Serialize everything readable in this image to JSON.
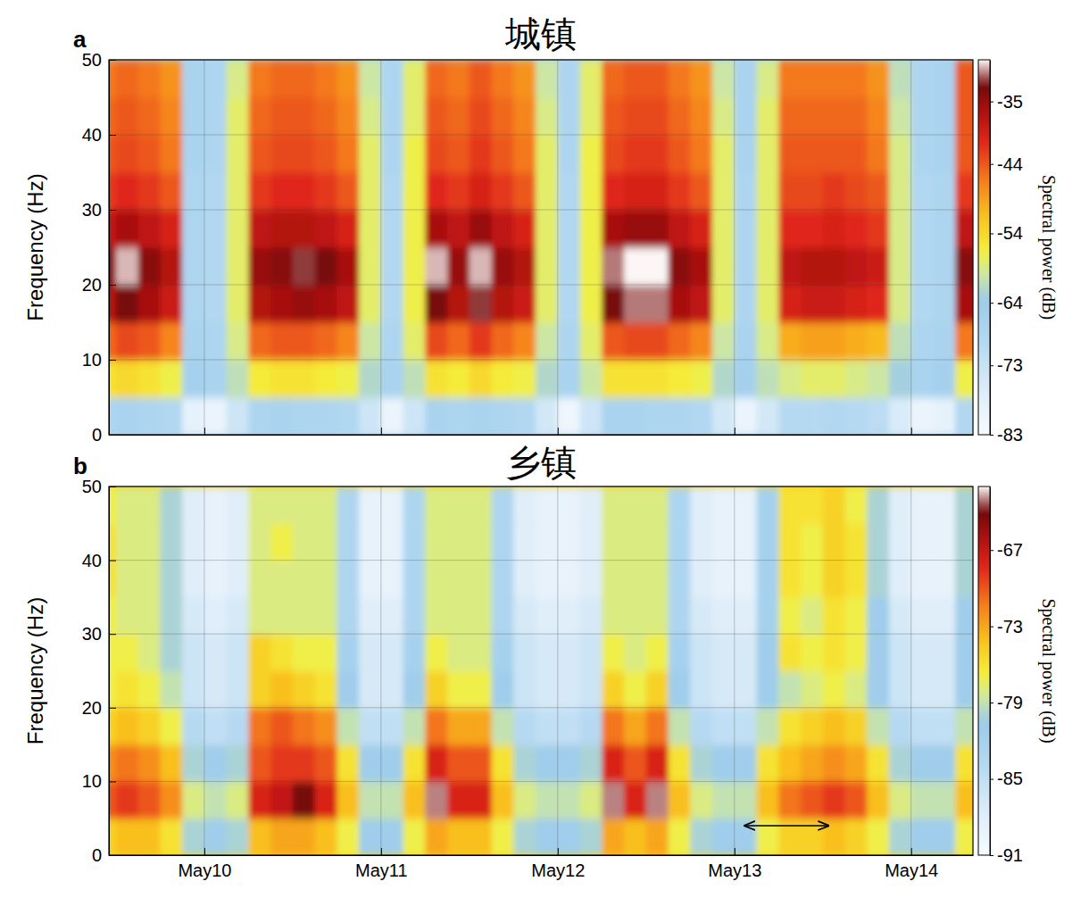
{
  "chart_data": [
    {
      "type": "heatmap",
      "title": "城镇",
      "panel": "a",
      "y_label": "Frequency (Hz)",
      "xlim": [
        9.46,
        14.35
      ],
      "ylim": [
        0,
        50
      ],
      "xticks": [
        {
          "value": 10,
          "label": "May10"
        },
        {
          "value": 11,
          "label": "May11"
        },
        {
          "value": 12,
          "label": "May12"
        },
        {
          "value": 13,
          "label": "May13"
        },
        {
          "value": 14,
          "label": "May14"
        }
      ],
      "yticks": [
        0,
        10,
        20,
        30,
        40,
        50
      ],
      "grid": true,
      "tick_labels": "y",
      "x_edges": [
        9.375,
        9.5,
        9.625,
        9.75,
        9.875,
        10,
        10.125,
        10.25,
        10.375,
        10.5,
        10.625,
        10.75,
        10.875,
        11,
        11.125,
        11.25,
        11.375,
        11.5,
        11.625,
        11.75,
        11.875,
        12,
        12.125,
        12.25,
        12.375,
        12.5,
        12.625,
        12.75,
        12.875,
        13,
        13.125,
        13.25,
        13.375,
        13.5,
        13.625,
        13.75,
        13.875,
        14,
        14.125,
        14.25,
        14.375
      ],
      "y_edges": [
        0,
        5,
        10,
        15,
        20,
        25,
        30,
        35,
        40,
        45,
        50
      ],
      "cells": [
        [
          -68,
          -67,
          -68,
          -69,
          -79,
          -80,
          -74,
          -68,
          -67,
          -68,
          -68,
          -69,
          -74,
          -80,
          -74,
          -67,
          -68,
          -67,
          -68,
          -69,
          -75,
          -81,
          -74,
          -67,
          -67,
          -68,
          -68,
          -69,
          -75,
          -80,
          -75,
          -70,
          -70,
          -69,
          -70,
          -71,
          -76,
          -80,
          -79,
          -69
        ],
        [
          -55,
          -54,
          -55,
          -57,
          -66,
          -67,
          -61,
          -56,
          -55,
          -55,
          -56,
          -57,
          -62,
          -67,
          -61,
          -55,
          -56,
          -54,
          -56,
          -57,
          -62,
          -67,
          -60,
          -55,
          -55,
          -55,
          -56,
          -57,
          -62,
          -66,
          -61,
          -59,
          -58,
          -58,
          -59,
          -60,
          -63,
          -67,
          -66,
          -57
        ],
        [
          -45,
          -43,
          -44,
          -47,
          -67,
          -68,
          -59,
          -45,
          -44,
          -44,
          -45,
          -47,
          -60,
          -68,
          -58,
          -43,
          -45,
          -42,
          -45,
          -47,
          -60,
          -68,
          -58,
          -44,
          -43,
          -43,
          -45,
          -47,
          -60,
          -67,
          -59,
          -50,
          -49,
          -49,
          -50,
          -51,
          -61,
          -68,
          -67,
          -46
        ],
        [
          -37,
          -33,
          -36,
          -39,
          -68,
          -69,
          -58,
          -37,
          -36,
          -35,
          -36,
          -38,
          -58,
          -69,
          -57,
          -33,
          -37,
          -32,
          -37,
          -39,
          -58,
          -69,
          -57,
          -33,
          -31,
          -31,
          -36,
          -38,
          -58,
          -68,
          -58,
          -40,
          -39,
          -39,
          -40,
          -41,
          -59,
          -69,
          -68,
          -36
        ],
        [
          -34,
          -30,
          -34,
          -37,
          -68,
          -69,
          -58,
          -35,
          -34,
          -32,
          -33,
          -36,
          -58,
          -69,
          -57,
          -30,
          -35,
          -30,
          -35,
          -37,
          -58,
          -69,
          -57,
          -31,
          -29,
          -29,
          -34,
          -36,
          -58,
          -68,
          -58,
          -38,
          -37,
          -37,
          -38,
          -39,
          -59,
          -69,
          -68,
          -34
        ],
        [
          -38,
          -36,
          -38,
          -40,
          -68,
          -69,
          -58,
          -38,
          -37,
          -37,
          -38,
          -40,
          -58,
          -69,
          -57,
          -36,
          -38,
          -35,
          -38,
          -40,
          -58,
          -69,
          -57,
          -36,
          -35,
          -35,
          -38,
          -40,
          -58,
          -68,
          -58,
          -41,
          -41,
          -40,
          -41,
          -42,
          -59,
          -69,
          -68,
          -38
        ],
        [
          -42,
          -41,
          -42,
          -44,
          -68,
          -69,
          -58,
          -42,
          -41,
          -41,
          -42,
          -44,
          -58,
          -69,
          -57,
          -41,
          -42,
          -40,
          -42,
          -44,
          -58,
          -69,
          -57,
          -41,
          -40,
          -40,
          -42,
          -44,
          -58,
          -68,
          -58,
          -43,
          -43,
          -42,
          -43,
          -44,
          -59,
          -69,
          -68,
          -42
        ],
        [
          -44,
          -43,
          -44,
          -46,
          -67,
          -68,
          -58,
          -44,
          -43,
          -43,
          -44,
          -46,
          -58,
          -68,
          -57,
          -43,
          -44,
          -42,
          -44,
          -46,
          -58,
          -68,
          -57,
          -43,
          -42,
          -42,
          -44,
          -46,
          -58,
          -67,
          -58,
          -44,
          -44,
          -44,
          -44,
          -46,
          -59,
          -68,
          -67,
          -44
        ],
        [
          -45,
          -44,
          -45,
          -47,
          -67,
          -68,
          -58,
          -45,
          -44,
          -44,
          -45,
          -47,
          -59,
          -68,
          -58,
          -44,
          -45,
          -43,
          -45,
          -47,
          -59,
          -68,
          -58,
          -44,
          -43,
          -43,
          -45,
          -47,
          -59,
          -67,
          -58,
          -45,
          -45,
          -45,
          -45,
          -47,
          -60,
          -68,
          -67,
          -44
        ],
        [
          -46,
          -45,
          -46,
          -48,
          -67,
          -68,
          -59,
          -46,
          -45,
          -45,
          -46,
          -48,
          -60,
          -68,
          -58,
          -45,
          -46,
          -44,
          -46,
          -48,
          -60,
          -68,
          -58,
          -45,
          -44,
          -44,
          -46,
          -48,
          -60,
          -67,
          -59,
          -46,
          -46,
          -46,
          -46,
          -48,
          -61,
          -68,
          -67,
          -44
        ]
      ],
      "colorbar": {
        "label": "Spectral power (dB)",
        "range": [
          -83,
          -29
        ],
        "ticks": [
          -35,
          -44,
          -54,
          -64,
          -73,
          -83
        ]
      }
    },
    {
      "type": "heatmap",
      "title": "乡镇",
      "panel": "b",
      "y_label": "Frequency (Hz)",
      "xlim": [
        9.46,
        14.35
      ],
      "ylim": [
        0,
        50
      ],
      "xticks": [
        {
          "value": 10,
          "label": "May10"
        },
        {
          "value": 11,
          "label": "May11"
        },
        {
          "value": 12,
          "label": "May12"
        },
        {
          "value": 13,
          "label": "May13"
        },
        {
          "value": 14,
          "label": "May14"
        }
      ],
      "yticks": [
        0,
        10,
        20,
        30,
        40,
        50
      ],
      "grid": true,
      "x_edges": [
        9.375,
        9.5,
        9.625,
        9.75,
        9.875,
        10,
        10.125,
        10.25,
        10.375,
        10.5,
        10.625,
        10.75,
        10.875,
        11,
        11.125,
        11.25,
        11.375,
        11.5,
        11.625,
        11.75,
        11.875,
        12,
        12.125,
        12.25,
        12.375,
        12.5,
        12.625,
        12.75,
        12.875,
        13,
        13.125,
        13.25,
        13.375,
        13.5,
        13.625,
        13.75,
        13.875,
        14,
        14.125,
        14.25,
        14.375
      ],
      "y_edges": [
        0,
        5,
        10,
        15,
        20,
        25,
        30,
        35,
        40,
        45,
        50
      ],
      "cells": [
        [
          -75,
          -74,
          -74,
          -76,
          -80,
          -81,
          -80,
          -74,
          -73,
          -73,
          -74,
          -77,
          -81,
          -81,
          -77,
          -73,
          -74,
          -74,
          -77,
          -80,
          -81,
          -81,
          -80,
          -73,
          -74,
          -73,
          -77,
          -80,
          -81,
          -81,
          -77,
          -75,
          -75,
          -74,
          -75,
          -77,
          -80,
          -81,
          -81,
          -77
        ],
        [
          -70,
          -69,
          -70,
          -72,
          -78,
          -79,
          -78,
          -68,
          -67,
          -64,
          -68,
          -74,
          -79,
          -79,
          -74,
          -63,
          -68,
          -68,
          -74,
          -78,
          -79,
          -79,
          -78,
          -63,
          -68,
          -63,
          -74,
          -78,
          -79,
          -79,
          -74,
          -71,
          -70,
          -69,
          -70,
          -74,
          -78,
          -79,
          -79,
          -74
        ],
        [
          -72,
          -71,
          -72,
          -74,
          -80,
          -81,
          -80,
          -70,
          -69,
          -69,
          -70,
          -76,
          -81,
          -81,
          -76,
          -68,
          -70,
          -70,
          -76,
          -80,
          -81,
          -81,
          -80,
          -68,
          -70,
          -68,
          -76,
          -80,
          -81,
          -81,
          -76,
          -74,
          -73,
          -72,
          -73,
          -76,
          -80,
          -81,
          -81,
          -76
        ],
        [
          -75,
          -74,
          -75,
          -77,
          -84,
          -85,
          -84,
          -71,
          -70,
          -71,
          -72,
          -79,
          -85,
          -85,
          -79,
          -71,
          -73,
          -73,
          -79,
          -84,
          -85,
          -85,
          -84,
          -71,
          -73,
          -71,
          -79,
          -84,
          -85,
          -85,
          -79,
          -76,
          -75,
          -74,
          -75,
          -79,
          -84,
          -85,
          -85,
          -79
        ],
        [
          -77,
          -76,
          -77,
          -79,
          -86,
          -87,
          -86,
          -75,
          -74,
          -75,
          -76,
          -81,
          -87,
          -87,
          -81,
          -75,
          -77,
          -77,
          -81,
          -86,
          -87,
          -87,
          -86,
          -75,
          -77,
          -75,
          -81,
          -86,
          -87,
          -87,
          -81,
          -79,
          -78,
          -77,
          -78,
          -81,
          -86,
          -87,
          -87,
          -81
        ],
        [
          -77,
          -77,
          -78,
          -80,
          -86,
          -87,
          -86,
          -75,
          -76,
          -77,
          -77,
          -82,
          -87,
          -87,
          -82,
          -77,
          -78,
          -78,
          -82,
          -86,
          -87,
          -87,
          -86,
          -77,
          -78,
          -77,
          -82,
          -86,
          -87,
          -87,
          -81,
          -76,
          -77,
          -76,
          -77,
          -81,
          -86,
          -87,
          -87,
          -81
        ],
        [
          -77,
          -78,
          -78,
          -80,
          -87,
          -88,
          -87,
          -78,
          -78,
          -78,
          -78,
          -83,
          -88,
          -88,
          -83,
          -78,
          -78,
          -78,
          -83,
          -87,
          -88,
          -88,
          -87,
          -78,
          -78,
          -78,
          -83,
          -87,
          -88,
          -88,
          -82,
          -77,
          -78,
          -76,
          -77,
          -81,
          -87,
          -88,
          -88,
          -81
        ],
        [
          -76,
          -78,
          -78,
          -80,
          -88,
          -89,
          -88,
          -78,
          -78,
          -78,
          -78,
          -83,
          -89,
          -89,
          -83,
          -78,
          -78,
          -78,
          -83,
          -88,
          -89,
          -89,
          -88,
          -78,
          -78,
          -78,
          -83,
          -88,
          -89,
          -89,
          -82,
          -76,
          -77,
          -75,
          -76,
          -80,
          -88,
          -89,
          -89,
          -80
        ],
        [
          -76,
          -78,
          -78,
          -80,
          -88,
          -89,
          -88,
          -78,
          -77,
          -78,
          -78,
          -83,
          -89,
          -89,
          -83,
          -78,
          -78,
          -78,
          -83,
          -88,
          -89,
          -89,
          -88,
          -78,
          -78,
          -78,
          -83,
          -88,
          -89,
          -89,
          -82,
          -76,
          -77,
          -75,
          -76,
          -80,
          -88,
          -89,
          -89,
          -80
        ],
        [
          -77,
          -78,
          -78,
          -80,
          -88,
          -89,
          -88,
          -78,
          -78,
          -78,
          -78,
          -83,
          -89,
          -89,
          -83,
          -78,
          -78,
          -78,
          -83,
          -88,
          -89,
          -89,
          -88,
          -78,
          -78,
          -78,
          -83,
          -88,
          -89,
          -89,
          -82,
          -76,
          -76,
          -75,
          -77,
          -80,
          -88,
          -89,
          -89,
          -80
        ]
      ],
      "arrow": {
        "x": [
          13.06,
          13.53
        ],
        "y": 4
      },
      "colorbar": {
        "label": "Spectral power (dB)",
        "range": [
          -91,
          -62
        ],
        "ticks": [
          -67,
          -73,
          -79,
          -85,
          -91
        ]
      }
    }
  ]
}
